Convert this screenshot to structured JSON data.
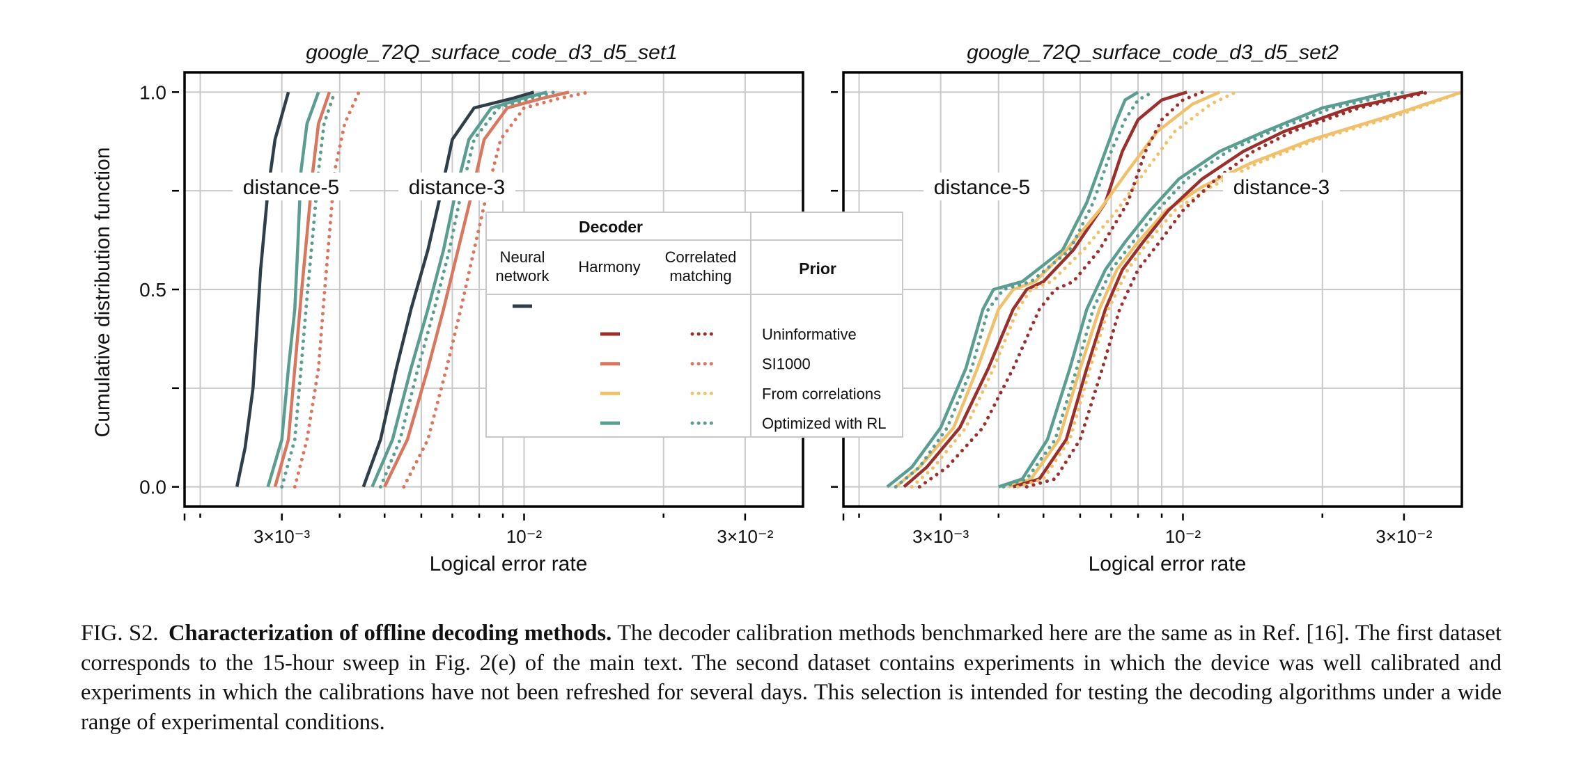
{
  "chart_data": [
    {
      "type": "line",
      "title": "google_72Q_surface_code_d3_d5_set1",
      "xlabel": "Logical error rate",
      "ylabel": "Cumulative distribution function",
      "xscale": "log",
      "xlim": [
        0.00185,
        0.04
      ],
      "ylim": [
        -0.05,
        1.05
      ],
      "xticks": [
        "3×10⁻³",
        "10⁻²",
        "3×10⁻²"
      ],
      "yticks": [
        "0.0",
        "0.5",
        "1.0"
      ],
      "grid": true,
      "annotations": [
        "distance-5",
        "distance-3"
      ],
      "series": [
        {
          "decoder": "Neural network",
          "prior": "",
          "style": "solid",
          "color": "#2f3e48",
          "distance": 5,
          "x": [
            0.0024,
            0.0025,
            0.0026,
            0.00265,
            0.0027,
            0.0028,
            0.0029,
            0.0031
          ],
          "y": [
            0,
            0.1,
            0.25,
            0.4,
            0.55,
            0.75,
            0.88,
            1.0
          ]
        },
        {
          "decoder": "Harmony",
          "prior": "Optimized with RL",
          "style": "solid",
          "color": "#5a9e91",
          "distance": 5,
          "x": [
            0.0028,
            0.003,
            0.0031,
            0.0032,
            0.00325,
            0.0033,
            0.0034,
            0.0036
          ],
          "y": [
            0,
            0.12,
            0.3,
            0.45,
            0.62,
            0.8,
            0.92,
            1.0
          ]
        },
        {
          "decoder": "Harmony",
          "prior": "SI1000",
          "style": "solid",
          "color": "#d9765e",
          "distance": 5,
          "x": [
            0.0029,
            0.0031,
            0.0032,
            0.0033,
            0.0034,
            0.0035,
            0.0036,
            0.0038
          ],
          "y": [
            0,
            0.12,
            0.3,
            0.48,
            0.64,
            0.8,
            0.92,
            1.0
          ]
        },
        {
          "decoder": "Correlated matching",
          "prior": "Optimized with RL",
          "style": "dotted",
          "color": "#5a9e91",
          "distance": 5,
          "x": [
            0.003,
            0.0032,
            0.0033,
            0.0034,
            0.0035,
            0.0036,
            0.0037,
            0.0039
          ],
          "y": [
            0,
            0.12,
            0.3,
            0.48,
            0.64,
            0.8,
            0.92,
            1.0
          ]
        },
        {
          "decoder": "Correlated matching",
          "prior": "SI1000",
          "style": "dotted",
          "color": "#d9765e",
          "distance": 5,
          "x": [
            0.0032,
            0.0034,
            0.0036,
            0.0037,
            0.0038,
            0.0039,
            0.0041,
            0.0044
          ],
          "y": [
            0,
            0.12,
            0.3,
            0.48,
            0.64,
            0.8,
            0.92,
            1.0
          ]
        },
        {
          "decoder": "Neural network",
          "prior": "",
          "style": "solid",
          "color": "#2f3e48",
          "distance": 3,
          "x": [
            0.0045,
            0.0049,
            0.0053,
            0.0057,
            0.0062,
            0.0066,
            0.007,
            0.0078,
            0.0095,
            0.0105
          ],
          "y": [
            0,
            0.12,
            0.3,
            0.45,
            0.6,
            0.74,
            0.88,
            0.96,
            0.985,
            1.0
          ]
        },
        {
          "decoder": "Harmony",
          "prior": "Optimized with RL",
          "style": "solid",
          "color": "#5a9e91",
          "distance": 3,
          "x": [
            0.0047,
            0.0052,
            0.0057,
            0.0062,
            0.0067,
            0.0071,
            0.0076,
            0.0085,
            0.01,
            0.0112
          ],
          "y": [
            0,
            0.12,
            0.3,
            0.45,
            0.6,
            0.74,
            0.88,
            0.96,
            0.985,
            1.0
          ]
        },
        {
          "decoder": "Correlated matching",
          "prior": "Optimized with RL",
          "style": "dotted",
          "color": "#5a9e91",
          "distance": 3,
          "x": [
            0.0049,
            0.0054,
            0.0059,
            0.0064,
            0.0069,
            0.0073,
            0.0078,
            0.0088,
            0.0104,
            0.0116
          ],
          "y": [
            0,
            0.12,
            0.3,
            0.45,
            0.6,
            0.74,
            0.88,
            0.96,
            0.985,
            1.0
          ]
        },
        {
          "decoder": "Harmony",
          "prior": "SI1000",
          "style": "solid",
          "color": "#d9765e",
          "distance": 3,
          "x": [
            0.005,
            0.0056,
            0.0062,
            0.0067,
            0.0072,
            0.0077,
            0.0082,
            0.0092,
            0.011,
            0.0125
          ],
          "y": [
            0,
            0.12,
            0.3,
            0.45,
            0.6,
            0.74,
            0.88,
            0.96,
            0.985,
            1.0
          ]
        },
        {
          "decoder": "Correlated matching",
          "prior": "SI1000",
          "style": "dotted",
          "color": "#d9765e",
          "distance": 3,
          "x": [
            0.0055,
            0.0062,
            0.0068,
            0.0073,
            0.0078,
            0.0083,
            0.0089,
            0.01,
            0.012,
            0.0138
          ],
          "y": [
            0,
            0.12,
            0.3,
            0.45,
            0.6,
            0.74,
            0.88,
            0.96,
            0.985,
            1.0
          ]
        }
      ]
    },
    {
      "type": "line",
      "title": "google_72Q_surface_code_d3_d5_set2",
      "xlabel": "Logical error rate",
      "ylabel": "",
      "xscale": "log",
      "xlim": [
        0.00185,
        0.04
      ],
      "ylim": [
        -0.05,
        1.05
      ],
      "xticks": [
        "3×10⁻³",
        "10⁻²",
        "3×10⁻²"
      ],
      "yticks": [
        "",
        "",
        ""
      ],
      "grid": true,
      "annotations": [
        "distance-5",
        "distance-3"
      ],
      "series": [
        {
          "decoder": "Harmony",
          "prior": "Optimized with RL",
          "style": "solid",
          "color": "#5a9e91",
          "distance": 5,
          "x": [
            0.0023,
            0.0026,
            0.003,
            0.0034,
            0.0037,
            0.0039,
            0.0045,
            0.0055,
            0.0062,
            0.0068,
            0.0072,
            0.0075,
            0.008
          ],
          "y": [
            0,
            0.05,
            0.15,
            0.3,
            0.45,
            0.5,
            0.52,
            0.6,
            0.72,
            0.85,
            0.93,
            0.98,
            1.0
          ]
        },
        {
          "decoder": "Harmony",
          "prior": "Uninformative",
          "style": "solid",
          "color": "#9a2f2c",
          "distance": 5,
          "x": [
            0.0025,
            0.0028,
            0.0033,
            0.0038,
            0.0043,
            0.0046,
            0.005,
            0.0058,
            0.0068,
            0.0074,
            0.008,
            0.009,
            0.0102
          ],
          "y": [
            0,
            0.05,
            0.15,
            0.3,
            0.45,
            0.5,
            0.52,
            0.6,
            0.72,
            0.85,
            0.93,
            0.98,
            1.0
          ]
        },
        {
          "decoder": "Harmony",
          "prior": "From correlations",
          "style": "solid",
          "color": "#f0c06a",
          "distance": 5,
          "x": [
            0.0024,
            0.0027,
            0.0032,
            0.0036,
            0.004,
            0.0043,
            0.0048,
            0.0056,
            0.0066,
            0.0076,
            0.0088,
            0.0105,
            0.012
          ],
          "y": [
            0,
            0.05,
            0.15,
            0.3,
            0.45,
            0.5,
            0.52,
            0.6,
            0.7,
            0.8,
            0.9,
            0.97,
            1.0
          ]
        },
        {
          "decoder": "Correlated matching",
          "prior": "Optimized with RL",
          "style": "dotted",
          "color": "#5a9e91",
          "distance": 5,
          "x": [
            0.0024,
            0.0027,
            0.0031,
            0.0035,
            0.0038,
            0.0041,
            0.0047,
            0.0057,
            0.0064,
            0.007,
            0.0075,
            0.008,
            0.0086
          ],
          "y": [
            0,
            0.05,
            0.15,
            0.3,
            0.45,
            0.5,
            0.52,
            0.6,
            0.72,
            0.85,
            0.93,
            0.98,
            1.0
          ]
        },
        {
          "decoder": "Correlated matching",
          "prior": "From correlations",
          "style": "dotted",
          "color": "#f0c06a",
          "distance": 5,
          "x": [
            0.0026,
            0.0029,
            0.0034,
            0.0039,
            0.0044,
            0.0047,
            0.0052,
            0.0061,
            0.0072,
            0.0083,
            0.0096,
            0.0115,
            0.013
          ],
          "y": [
            0,
            0.05,
            0.15,
            0.3,
            0.45,
            0.5,
            0.52,
            0.6,
            0.7,
            0.8,
            0.9,
            0.97,
            1.0
          ]
        },
        {
          "decoder": "Correlated matching",
          "prior": "Uninformative",
          "style": "dotted",
          "color": "#9a2f2c",
          "distance": 5,
          "x": [
            0.0027,
            0.0031,
            0.0037,
            0.0043,
            0.0049,
            0.0053,
            0.0058,
            0.0066,
            0.0076,
            0.0083,
            0.009,
            0.01,
            0.011
          ],
          "y": [
            0,
            0.05,
            0.15,
            0.3,
            0.45,
            0.5,
            0.52,
            0.6,
            0.72,
            0.85,
            0.93,
            0.98,
            1.0
          ]
        },
        {
          "decoder": "Harmony",
          "prior": "Optimized with RL",
          "style": "solid",
          "color": "#5a9e91",
          "distance": 3,
          "x": [
            0.004,
            0.0045,
            0.0051,
            0.0057,
            0.0062,
            0.0068,
            0.0075,
            0.0085,
            0.0098,
            0.012,
            0.015,
            0.02,
            0.028
          ],
          "y": [
            0,
            0.02,
            0.12,
            0.3,
            0.45,
            0.55,
            0.62,
            0.7,
            0.78,
            0.85,
            0.9,
            0.96,
            1.0
          ]
        },
        {
          "decoder": "Harmony",
          "prior": "From correlations",
          "style": "solid",
          "color": "#f0c06a",
          "distance": 3,
          "x": [
            0.0042,
            0.0047,
            0.0054,
            0.006,
            0.0066,
            0.0072,
            0.008,
            0.0092,
            0.011,
            0.014,
            0.019,
            0.028,
            0.04
          ],
          "y": [
            0,
            0.02,
            0.12,
            0.3,
            0.45,
            0.55,
            0.62,
            0.7,
            0.76,
            0.82,
            0.88,
            0.94,
            1.0
          ]
        },
        {
          "decoder": "Harmony",
          "prior": "Uninformative",
          "style": "solid",
          "color": "#9a2f2c",
          "distance": 3,
          "x": [
            0.0043,
            0.0049,
            0.0056,
            0.0062,
            0.0068,
            0.0074,
            0.0082,
            0.0093,
            0.011,
            0.0135,
            0.0165,
            0.023,
            0.033
          ],
          "y": [
            0,
            0.02,
            0.12,
            0.3,
            0.45,
            0.55,
            0.62,
            0.7,
            0.78,
            0.85,
            0.9,
            0.96,
            1.0
          ]
        },
        {
          "decoder": "Correlated matching",
          "prior": "Optimized with RL",
          "style": "dotted",
          "color": "#5a9e91",
          "distance": 3,
          "x": [
            0.0041,
            0.0046,
            0.0053,
            0.0059,
            0.0064,
            0.007,
            0.0078,
            0.0088,
            0.0102,
            0.0125,
            0.0155,
            0.021,
            0.03
          ],
          "y": [
            0,
            0.02,
            0.12,
            0.3,
            0.45,
            0.55,
            0.62,
            0.7,
            0.78,
            0.85,
            0.9,
            0.96,
            1.0
          ]
        },
        {
          "decoder": "Correlated matching",
          "prior": "From correlations",
          "style": "dotted",
          "color": "#f0c06a",
          "distance": 3,
          "x": [
            0.0044,
            0.005,
            0.0057,
            0.0063,
            0.0069,
            0.0076,
            0.0084,
            0.0096,
            0.0115,
            0.0145,
            0.0195,
            0.029,
            0.04
          ],
          "y": [
            0,
            0.02,
            0.12,
            0.3,
            0.45,
            0.55,
            0.62,
            0.7,
            0.76,
            0.82,
            0.88,
            0.94,
            1.0
          ]
        },
        {
          "decoder": "Correlated matching",
          "prior": "Uninformative",
          "style": "dotted",
          "color": "#9a2f2c",
          "distance": 3,
          "x": [
            0.0046,
            0.0053,
            0.006,
            0.0067,
            0.0073,
            0.008,
            0.0089,
            0.01,
            0.0118,
            0.0142,
            0.0172,
            0.024,
            0.034
          ],
          "y": [
            0,
            0.02,
            0.12,
            0.3,
            0.45,
            0.55,
            0.62,
            0.7,
            0.78,
            0.85,
            0.9,
            0.96,
            1.0
          ]
        }
      ]
    }
  ],
  "legend": {
    "header_decoder": "Decoder",
    "col_neural": "Neural network",
    "col_neural_line1": "Neural",
    "col_neural_line2": "network",
    "col_harmony": "Harmony",
    "col_correlated": "Correlated matching",
    "col_correlated_line1": "Correlated",
    "col_correlated_line2": "matching",
    "header_prior": "Prior",
    "priors": [
      {
        "name": "Uninformative",
        "color": "#9a2f2c"
      },
      {
        "name": "SI1000",
        "color": "#d9765e"
      },
      {
        "name": "From correlations",
        "color": "#f0c06a"
      },
      {
        "name": "Optimized with RL",
        "color": "#5a9e91"
      }
    ],
    "neural_color": "#2f3e48"
  },
  "caption": {
    "label": "FIG. S2.",
    "title": "Characterization of offline decoding methods.",
    "text": "The decoder calibration methods benchmarked here are the same as in Ref. [16]. The first dataset corresponds to the 15-hour sweep in Fig. 2(e) of the main text. The second dataset contains experiments in which the device was well calibrated and experiments in which the calibrations have not been refreshed for several days. This selection is intended for testing the decoding algorithms under a wide range of experimental conditions."
  }
}
